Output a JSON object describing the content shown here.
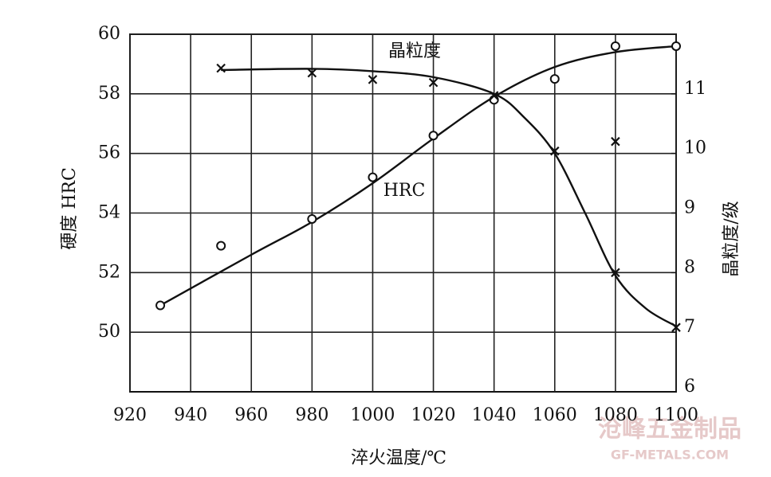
{
  "chart_data": {
    "type": "line",
    "x_label": "淬火温度/℃",
    "y_label": "硬度 HRC",
    "y2_label": "晶粒度/级",
    "annotations": [
      "晶粒度",
      "HRC"
    ],
    "xlim": [
      920,
      1100
    ],
    "xticks": [
      920,
      940,
      960,
      980,
      1000,
      1020,
      1040,
      1060,
      1080,
      1100
    ],
    "ylim": [
      48,
      60
    ],
    "yticks": [
      50,
      52,
      54,
      56,
      58,
      60
    ],
    "y2lim": [
      6,
      12
    ],
    "y2ticks": [
      6,
      7,
      8,
      9,
      10,
      11
    ],
    "grid": true,
    "series": [
      {
        "name": "HRC",
        "marker": "circle",
        "color": "#111111",
        "x": [
          930,
          950,
          980,
          1000,
          1020,
          1040,
          1060,
          1080,
          1100
        ],
        "values": [
          50.9,
          52.9,
          53.8,
          55.2,
          56.6,
          57.8,
          58.5,
          59.6,
          59.6
        ]
      },
      {
        "name": "晶粒度",
        "marker": "cross",
        "color": "#111111",
        "axis": "y2",
        "x": [
          950,
          980,
          1000,
          1020,
          1040,
          1060,
          1080,
          1080,
          1100
        ],
        "values": [
          11.43,
          11.35,
          11.24,
          11.19,
          10.97,
          10.04,
          10.2,
          8.0,
          7.08
        ]
      }
    ],
    "curves": [
      {
        "x": [
          930,
          960,
          980,
          1000,
          1020,
          1040,
          1060,
          1080,
          1100
        ],
        "values": [
          50.9,
          52.6,
          53.7,
          55.0,
          56.5,
          57.9,
          58.9,
          59.4,
          59.6
        ]
      },
      {
        "axis": "y2",
        "x": [
          950,
          980,
          1000,
          1020,
          1040,
          1050,
          1060,
          1070,
          1080,
          1090,
          1100
        ],
        "values": [
          11.4,
          11.42,
          11.38,
          11.28,
          11.0,
          10.6,
          10.0,
          9.0,
          7.95,
          7.4,
          7.1
        ]
      }
    ]
  },
  "watermark": {
    "name": "沧峰五金制品",
    "url": "GF-METALS.COM"
  }
}
